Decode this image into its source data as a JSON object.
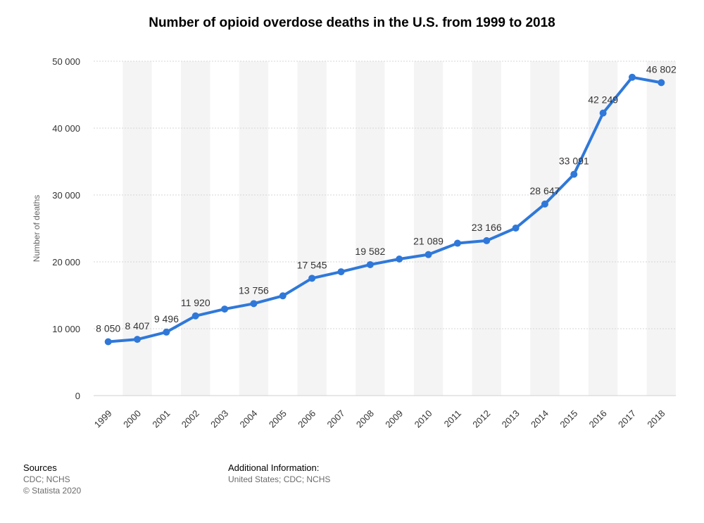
{
  "chart_data": {
    "type": "line",
    "title": "Number of opioid overdose deaths in the U.S. from 1999 to 2018",
    "ylabel": "Number of deaths",
    "xlabel": "",
    "categories": [
      "1999",
      "2000",
      "2001",
      "2002",
      "2003",
      "2004",
      "2005",
      "2006",
      "2007",
      "2008",
      "2009",
      "2010",
      "2011",
      "2012",
      "2013",
      "2014",
      "2015",
      "2016",
      "2017",
      "2018"
    ],
    "series": [
      {
        "values": [
          8050,
          8407,
          9496,
          11920,
          12940,
          13756,
          14918,
          17545,
          18516,
          19582,
          20422,
          21089,
          22784,
          23166,
          25052,
          28647,
          33091,
          42249,
          47600,
          46802
        ]
      }
    ],
    "data_labels": [
      {
        "index": 0,
        "text": "8 050"
      },
      {
        "index": 1,
        "text": "8 407"
      },
      {
        "index": 2,
        "text": "9 496"
      },
      {
        "index": 3,
        "text": "11 920"
      },
      {
        "index": 5,
        "text": "13 756"
      },
      {
        "index": 7,
        "text": "17 545"
      },
      {
        "index": 9,
        "text": "19 582"
      },
      {
        "index": 11,
        "text": "21 089"
      },
      {
        "index": 13,
        "text": "23 166"
      },
      {
        "index": 15,
        "text": "28 647"
      },
      {
        "index": 16,
        "text": "33 091"
      },
      {
        "index": 17,
        "text": "42 249"
      },
      {
        "index": 19,
        "text": "46 802"
      }
    ],
    "yticks": [
      0,
      10000,
      20000,
      30000,
      40000,
      50000
    ],
    "ytick_labels": [
      "0",
      "10 000",
      "20 000",
      "30 000",
      "40 000",
      "50 000"
    ],
    "ylim": [
      0,
      50000
    ],
    "grid": true,
    "line_color": "#2f78d9",
    "band_color": "#f4f4f4"
  },
  "footer": {
    "sources_heading": "Sources",
    "sources_lines": [
      "CDC; NCHS",
      "© Statista 2020"
    ],
    "additional_heading": "Additional Information:",
    "additional_lines": [
      "United States; CDC; NCHS"
    ]
  }
}
